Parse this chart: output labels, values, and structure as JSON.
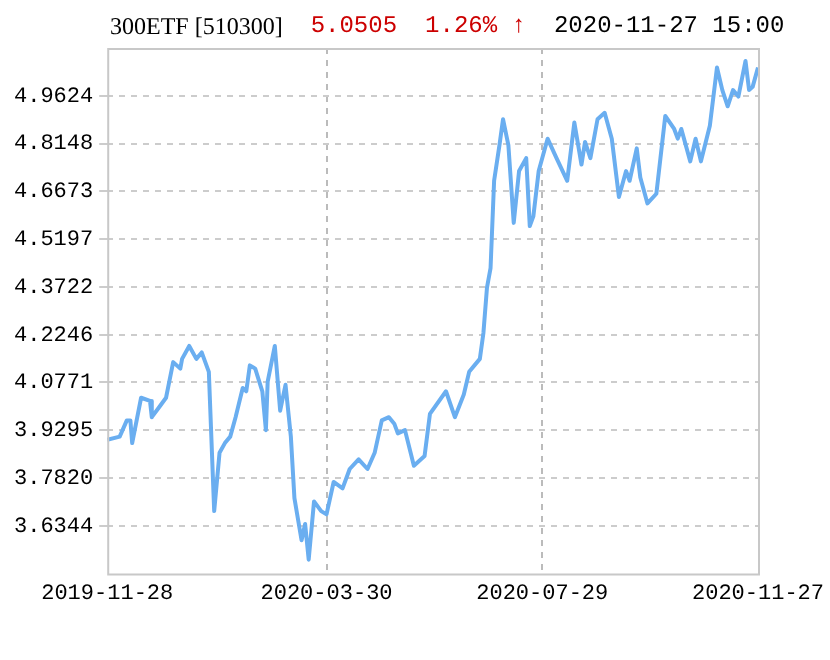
{
  "chart_data": {
    "type": "line",
    "title": "300ETF [510300]",
    "annotations": [
      "5.0505",
      "1.26% ↑",
      "2020-11-27 15:00"
    ],
    "x": [
      "2019-11-28",
      "2019-12-05",
      "2019-12-09",
      "2019-12-11",
      "2019-12-12",
      "2019-12-17",
      "2019-12-22",
      "2019-12-23",
      "2019-12-27",
      "2019-12-31",
      "2020-01-04",
      "2020-01-08",
      "2020-01-09",
      "2020-01-13",
      "2020-01-17",
      "2020-01-20",
      "2020-01-24",
      "2020-01-27",
      "2020-01-30",
      "2020-02-02",
      "2020-02-05",
      "2020-02-08",
      "2020-02-12",
      "2020-02-14",
      "2020-02-16",
      "2020-02-19",
      "2020-02-23",
      "2020-02-25",
      "2020-02-26",
      "2020-03-01",
      "2020-03-04",
      "2020-03-07",
      "2020-03-10",
      "2020-03-12",
      "2020-03-16",
      "2020-03-18",
      "2020-03-20",
      "2020-03-23",
      "2020-03-27",
      "2020-03-30",
      "2020-04-03",
      "2020-04-08",
      "2020-04-12",
      "2020-04-17",
      "2020-04-22",
      "2020-04-26",
      "2020-04-30",
      "2020-05-04",
      "2020-05-07",
      "2020-05-09",
      "2020-05-13",
      "2020-05-18",
      "2020-05-24",
      "2020-05-27",
      "2020-06-05",
      "2020-06-10",
      "2020-06-15",
      "2020-06-18",
      "2020-06-24",
      "2020-06-26",
      "2020-06-28",
      "2020-06-30",
      "2020-07-02",
      "2020-07-05",
      "2020-07-07",
      "2020-07-10",
      "2020-07-13",
      "2020-07-16",
      "2020-07-20",
      "2020-07-22",
      "2020-07-24",
      "2020-07-27",
      "2020-08-01",
      "2020-08-06",
      "2020-08-12",
      "2020-08-16",
      "2020-08-20",
      "2020-08-22",
      "2020-08-25",
      "2020-08-29",
      "2020-09-02",
      "2020-09-06",
      "2020-09-10",
      "2020-09-14",
      "2020-09-16",
      "2020-09-20",
      "2020-09-22",
      "2020-09-26",
      "2020-10-01",
      "2020-10-06",
      "2020-10-11",
      "2020-10-13",
      "2020-10-15",
      "2020-10-20",
      "2020-10-23",
      "2020-10-26",
      "2020-10-31",
      "2020-11-04",
      "2020-11-07",
      "2020-11-10",
      "2020-11-13",
      "2020-11-16",
      "2020-11-20",
      "2020-11-22",
      "2020-11-24",
      "2020-11-27"
    ],
    "series": [
      {
        "color": "#6aaef0",
        "values": [
          3.9,
          3.91,
          3.96,
          3.96,
          3.89,
          4.03,
          4.02,
          3.97,
          4.0,
          4.03,
          4.14,
          4.12,
          4.15,
          4.19,
          4.15,
          4.17,
          4.11,
          3.68,
          3.86,
          3.89,
          3.91,
          3.97,
          4.06,
          4.05,
          4.13,
          4.12,
          4.05,
          3.93,
          4.08,
          4.19,
          3.99,
          4.07,
          3.91,
          3.72,
          3.59,
          3.64,
          3.53,
          3.71,
          3.68,
          3.67,
          3.77,
          3.75,
          3.81,
          3.84,
          3.81,
          3.86,
          3.96,
          3.97,
          3.95,
          3.92,
          3.93,
          3.82,
          3.85,
          3.98,
          4.05,
          3.97,
          4.04,
          4.11,
          4.15,
          4.23,
          4.37,
          4.43,
          4.7,
          4.81,
          4.89,
          4.81,
          4.57,
          4.73,
          4.77,
          4.56,
          4.59,
          4.73,
          4.83,
          4.77,
          4.7,
          4.88,
          4.75,
          4.82,
          4.77,
          4.89,
          4.91,
          4.83,
          4.65,
          4.73,
          4.7,
          4.8,
          4.71,
          4.63,
          4.66,
          4.9,
          4.86,
          4.83,
          4.86,
          4.76,
          4.83,
          4.76,
          4.87,
          5.05,
          4.98,
          4.93,
          4.98,
          4.96,
          5.07,
          4.98,
          4.99,
          5.05
        ]
      }
    ],
    "xlim": [
      "2019-11-28",
      "2020-11-27"
    ],
    "xticks": [
      "2019-11-28",
      "2020-03-30",
      "2020-07-29",
      "2020-11-27"
    ],
    "ylim": [
      3.487,
      5.11
    ],
    "yticks": [
      {
        "value": 3.6344,
        "label": "3.6344"
      },
      {
        "value": 3.782,
        "label": "3.7820"
      },
      {
        "value": 3.9295,
        "label": "3.9295"
      },
      {
        "value": 4.0771,
        "label": "4.0771"
      },
      {
        "value": 4.2246,
        "label": "4.2246"
      },
      {
        "value": 4.3722,
        "label": "4.3722"
      },
      {
        "value": 4.5197,
        "label": "4.5197"
      },
      {
        "value": 4.6673,
        "label": "4.6673"
      },
      {
        "value": 4.8148,
        "label": "4.8148"
      },
      {
        "value": 4.9624,
        "label": "4.9624"
      }
    ],
    "grid": true,
    "legend": false,
    "marker": "none",
    "line_style": "solid"
  }
}
